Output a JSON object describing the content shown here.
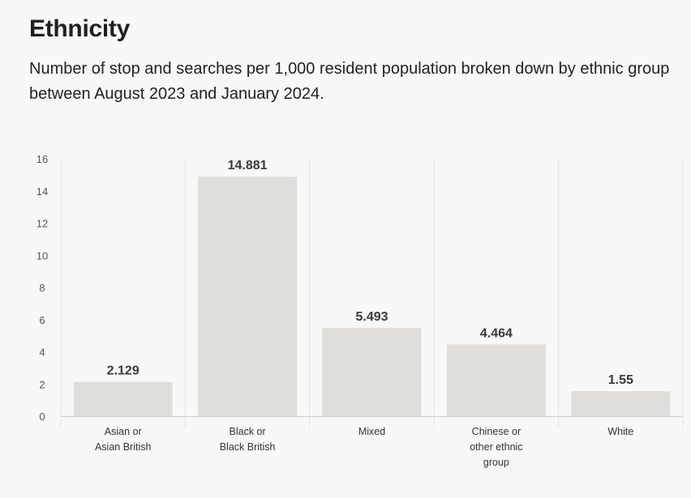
{
  "header": {
    "title": "Ethnicity",
    "subtitle": "Number of stop and searches per 1,000 resident population broken down by ethnic group between August 2023 and January 2024."
  },
  "chart_data": {
    "type": "bar",
    "categories": [
      [
        "Asian or",
        "Asian British"
      ],
      [
        "Black or",
        "Black British"
      ],
      [
        "Mixed"
      ],
      [
        "Chinese or",
        "other ethnic",
        "group"
      ],
      [
        "White"
      ]
    ],
    "values": [
      2.129,
      14.881,
      5.493,
      4.464,
      1.55
    ],
    "data_labels": [
      "2.129",
      "14.881",
      "5.493",
      "4.464",
      "1.55"
    ],
    "yticks": [
      "0",
      "2",
      "4",
      "6",
      "8",
      "10",
      "12",
      "14",
      "16"
    ],
    "ylim": [
      0,
      16
    ],
    "grid": "vertical separators",
    "colors": {
      "bar": "#dfdedb",
      "separator": "#e3e3e3",
      "axis": "#cfcfcf"
    }
  }
}
